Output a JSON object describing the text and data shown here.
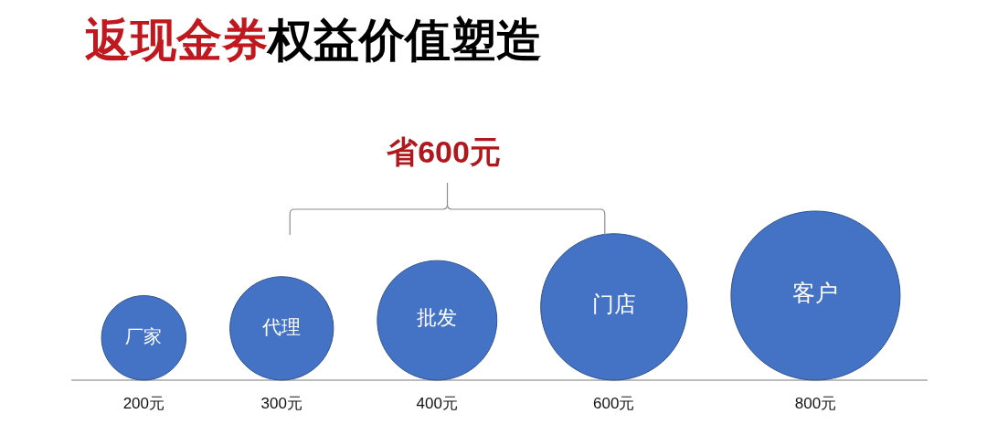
{
  "chart_data": {
    "type": "other",
    "title": "返现金券权益价值塑造",
    "categories": [
      "厂家",
      "代理",
      "批发",
      "门店",
      "客户"
    ],
    "values": [
      200,
      300,
      400,
      600,
      800
    ],
    "value_labels": [
      "200元",
      "300元",
      "400元",
      "600元",
      "800元"
    ],
    "color": "#4472c4",
    "annotations": [
      {
        "text": "省600元",
        "x": "批发"
      }
    ]
  }
}
